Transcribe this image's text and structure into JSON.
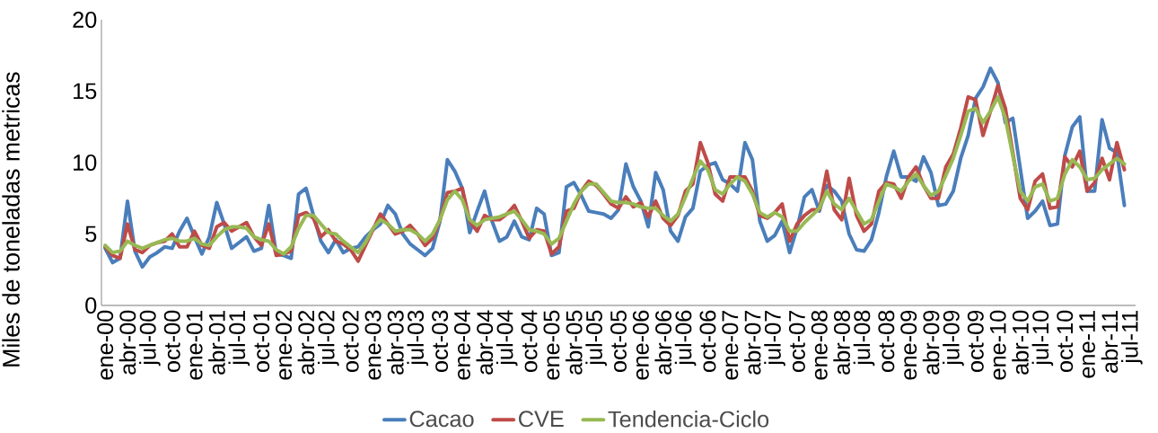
{
  "chart_data": {
    "type": "line",
    "ylabel": "Miles de toneladas metricas",
    "ylim": [
      0,
      20
    ],
    "yticks": [
      0,
      5,
      10,
      15,
      20
    ],
    "legend": "bottom",
    "categories": [
      "ene-00",
      null,
      null,
      "abr-00",
      null,
      null,
      "jul-00",
      null,
      null,
      "oct-00",
      null,
      null,
      "ene-01",
      null,
      null,
      "abr-01",
      null,
      null,
      "jul-01",
      null,
      null,
      "oct-01",
      null,
      null,
      "ene-02",
      null,
      null,
      "abr-02",
      null,
      null,
      "jul-02",
      null,
      null,
      "oct-02",
      null,
      null,
      "ene-03",
      null,
      null,
      "abr-03",
      null,
      null,
      "jul-03",
      null,
      null,
      "oct-03",
      null,
      null,
      "ene-04",
      null,
      null,
      "abr-04",
      null,
      null,
      "jul-04",
      null,
      null,
      "oct-04",
      null,
      null,
      "ene-05",
      null,
      null,
      "abr-05",
      null,
      null,
      "jul-05",
      null,
      null,
      "oct-05",
      null,
      null,
      "ene-06",
      null,
      null,
      "abr-06",
      null,
      null,
      "jul-06",
      null,
      null,
      "oct-06",
      null,
      null,
      "ene-07",
      null,
      null,
      "abr-07",
      null,
      null,
      "jul-07",
      null,
      null,
      "oct-07",
      null,
      null,
      "ene-08",
      null,
      null,
      "abr-08",
      null,
      null,
      "jul-08",
      null,
      null,
      "oct-08",
      null,
      null,
      "ene-09",
      null,
      null,
      "abr-09",
      null,
      null,
      "jul-09",
      null,
      null,
      "oct-09",
      null,
      null,
      "ene-10",
      null,
      null,
      "abr-10",
      null,
      null,
      "jul-10",
      null,
      null,
      "oct-10",
      null,
      null,
      "ene-11",
      null,
      null,
      "abr-11",
      null,
      null,
      "jul-11"
    ],
    "series": [
      {
        "name": "Cacao",
        "color": "#4a7ebb",
        "values": [
          4.0,
          3.0,
          3.3,
          7.3,
          3.8,
          2.7,
          3.4,
          3.7,
          4.1,
          4.0,
          5.2,
          6.1,
          4.8,
          3.6,
          4.8,
          7.2,
          5.7,
          4.0,
          4.4,
          4.8,
          3.8,
          4.0,
          7.0,
          3.6,
          3.5,
          3.3,
          7.8,
          8.2,
          6.3,
          4.5,
          3.7,
          4.6,
          3.7,
          4.0,
          4.1,
          4.8,
          5.3,
          5.7,
          7.0,
          6.4,
          5.0,
          4.3,
          3.9,
          3.5,
          4.0,
          5.9,
          10.2,
          9.4,
          8.2,
          5.1,
          6.6,
          8.0,
          5.9,
          4.5,
          4.8,
          5.9,
          4.8,
          4.6,
          6.8,
          6.4,
          3.5,
          3.7,
          8.3,
          8.6,
          7.7,
          6.6,
          6.5,
          6.4,
          6.1,
          6.7,
          9.9,
          8.3,
          7.3,
          5.5,
          9.3,
          8.1,
          5.2,
          4.5,
          6.2,
          6.8,
          9.4,
          9.8,
          10.0,
          8.8,
          8.5,
          8.0,
          11.4,
          10.2,
          5.9,
          4.5,
          4.9,
          5.9,
          3.7,
          5.4,
          7.6,
          8.1,
          6.6,
          8.4,
          8.0,
          7.3,
          5.0,
          3.9,
          3.8,
          4.6,
          6.5,
          9.0,
          10.8,
          9.0,
          9.0,
          8.7,
          10.4,
          9.3,
          7.0,
          7.1,
          8.0,
          10.3,
          11.9,
          14.5,
          15.3,
          16.6,
          15.6,
          12.8,
          13.1,
          9.6,
          6.1,
          6.6,
          7.3,
          5.6,
          5.7,
          10.5,
          12.5,
          13.2,
          8.0,
          8.0,
          13.0,
          11.0,
          10.7,
          7.0,
          null
        ]
      },
      {
        "name": "CVE",
        "color": "#be4b48",
        "values": [
          4.1,
          3.5,
          3.3,
          5.7,
          3.9,
          3.7,
          4.2,
          4.4,
          4.5,
          5.0,
          4.1,
          4.1,
          5.2,
          4.2,
          4.0,
          5.5,
          5.8,
          5.2,
          5.5,
          5.8,
          4.8,
          4.2,
          5.7,
          3.5,
          3.6,
          3.8,
          6.3,
          6.5,
          6.1,
          4.8,
          5.3,
          4.5,
          4.3,
          3.9,
          3.1,
          4.2,
          5.3,
          6.4,
          5.7,
          5.0,
          5.2,
          5.6,
          5.0,
          4.2,
          4.7,
          6.0,
          7.9,
          8.0,
          8.2,
          5.9,
          5.2,
          6.3,
          6.0,
          6.0,
          6.4,
          7.0,
          5.9,
          4.7,
          5.3,
          5.2,
          3.6,
          4.1,
          6.6,
          6.8,
          8.0,
          8.7,
          8.4,
          7.8,
          7.1,
          6.8,
          7.6,
          6.9,
          7.2,
          6.2,
          7.3,
          6.1,
          5.6,
          6.3,
          8.0,
          8.5,
          11.4,
          10.0,
          7.8,
          7.3,
          9.0,
          9.0,
          9.0,
          8.0,
          6.3,
          6.1,
          6.5,
          7.1,
          4.5,
          5.7,
          6.3,
          6.7,
          6.7,
          9.4,
          6.7,
          6.0,
          8.9,
          6.3,
          5.2,
          5.7,
          8.0,
          8.6,
          8.5,
          7.5,
          9.0,
          9.7,
          8.4,
          7.5,
          7.5,
          9.7,
          10.6,
          12.4,
          14.6,
          14.4,
          11.9,
          13.6,
          15.4,
          13.8,
          10.7,
          7.5,
          6.7,
          8.7,
          9.2,
          6.8,
          6.9,
          10.4,
          9.7,
          10.8,
          8.0,
          8.6,
          10.3,
          8.8,
          11.4,
          9.5,
          null
        ]
      },
      {
        "name": "Tendencia-Ciclo",
        "color": "#98b954",
        "values": [
          4.2,
          3.7,
          3.8,
          4.5,
          4.2,
          4.0,
          4.2,
          4.4,
          4.6,
          4.7,
          4.5,
          4.5,
          4.7,
          4.3,
          4.2,
          4.8,
          5.3,
          5.5,
          5.5,
          5.4,
          4.8,
          4.6,
          4.5,
          3.9,
          3.6,
          4.1,
          5.4,
          6.3,
          6.3,
          5.7,
          5.1,
          5.0,
          4.5,
          4.1,
          3.7,
          4.4,
          5.4,
          6.0,
          5.7,
          5.2,
          5.3,
          5.3,
          5.0,
          4.5,
          5.0,
          6.0,
          7.4,
          8.0,
          7.4,
          6.0,
          5.6,
          6.0,
          6.1,
          6.2,
          6.4,
          6.6,
          6.0,
          5.3,
          5.2,
          5.0,
          4.3,
          4.7,
          5.9,
          7.1,
          8.0,
          8.5,
          8.5,
          7.9,
          7.3,
          7.2,
          7.2,
          7.1,
          6.9,
          6.8,
          6.8,
          6.3,
          5.9,
          6.4,
          7.6,
          8.9,
          10.1,
          9.5,
          8.1,
          7.8,
          8.5,
          9.0,
          8.7,
          7.8,
          6.5,
          6.2,
          6.5,
          6.2,
          5.2,
          5.2,
          5.8,
          6.3,
          6.8,
          8.0,
          7.1,
          6.7,
          7.5,
          6.6,
          5.7,
          6.0,
          7.3,
          8.5,
          8.3,
          8.0,
          8.7,
          9.2,
          8.4,
          7.7,
          8.0,
          9.1,
          10.3,
          11.9,
          13.6,
          13.8,
          12.8,
          13.6,
          14.6,
          13.1,
          10.5,
          8.0,
          7.3,
          8.3,
          8.5,
          7.3,
          7.5,
          9.2,
          10.2,
          9.7,
          8.8,
          8.9,
          9.5,
          9.9,
          10.3,
          9.9,
          null
        ]
      }
    ]
  }
}
